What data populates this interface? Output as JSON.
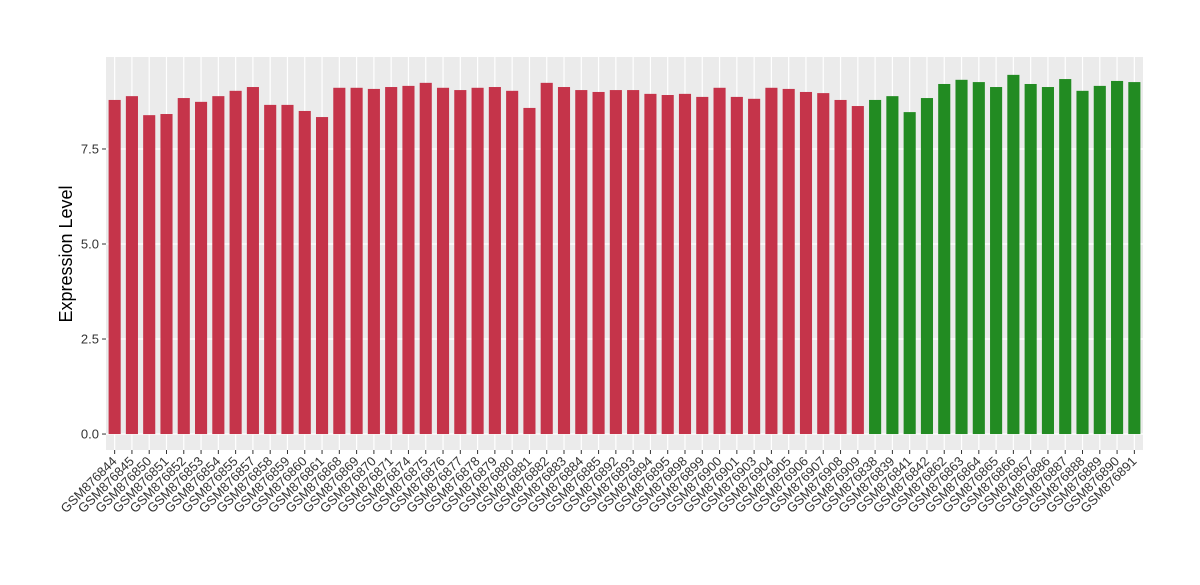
{
  "chart_data": {
    "type": "bar",
    "y_label": "Expression Level",
    "categories": [
      "GSM876844",
      "GSM876845",
      "GSM876850",
      "GSM876851",
      "GSM876852",
      "GSM876853",
      "GSM876854",
      "GSM876855",
      "GSM876857",
      "GSM876858",
      "GSM876859",
      "GSM876860",
      "GSM876861",
      "GSM876868",
      "GSM876869",
      "GSM876870",
      "GSM876871",
      "GSM876874",
      "GSM876875",
      "GSM876876",
      "GSM876877",
      "GSM876878",
      "GSM876879",
      "GSM876880",
      "GSM876881",
      "GSM876882",
      "GSM876883",
      "GSM876884",
      "GSM876885",
      "GSM876892",
      "GSM876893",
      "GSM876894",
      "GSM876895",
      "GSM876898",
      "GSM876899",
      "GSM876900",
      "GSM876901",
      "GSM876903",
      "GSM876904",
      "GSM876905",
      "GSM876906",
      "GSM876907",
      "GSM876908",
      "GSM876909",
      "GSM876838",
      "GSM876839",
      "GSM876841",
      "GSM876842",
      "GSM876862",
      "GSM876863",
      "GSM876864",
      "GSM876865",
      "GSM876866",
      "GSM876867",
      "GSM876886",
      "GSM876887",
      "GSM876888",
      "GSM876889",
      "GSM876890",
      "GSM876891"
    ],
    "values": [
      8.79,
      8.89,
      8.39,
      8.42,
      8.84,
      8.74,
      8.89,
      9.03,
      9.13,
      8.66,
      8.66,
      8.5,
      8.34,
      9.11,
      9.11,
      9.08,
      9.13,
      9.16,
      9.24,
      9.11,
      9.05,
      9.11,
      9.13,
      9.03,
      8.58,
      9.24,
      9.13,
      9.05,
      9.0,
      9.05,
      9.05,
      8.95,
      8.92,
      8.95,
      8.87,
      9.11,
      8.87,
      8.82,
      9.11,
      9.08,
      9.0,
      8.97,
      8.79,
      8.63,
      8.79,
      8.89,
      8.47,
      8.84,
      9.21,
      9.32,
      9.26,
      9.13,
      9.45,
      9.21,
      9.13,
      9.34,
      9.03,
      9.16,
      9.29,
      9.26
    ],
    "bar_colors": [
      "#c5344a",
      "#c5344a",
      "#c5344a",
      "#c5344a",
      "#c5344a",
      "#c5344a",
      "#c5344a",
      "#c5344a",
      "#c5344a",
      "#c5344a",
      "#c5344a",
      "#c5344a",
      "#c5344a",
      "#c5344a",
      "#c5344a",
      "#c5344a",
      "#c5344a",
      "#c5344a",
      "#c5344a",
      "#c5344a",
      "#c5344a",
      "#c5344a",
      "#c5344a",
      "#c5344a",
      "#c5344a",
      "#c5344a",
      "#c5344a",
      "#c5344a",
      "#c5344a",
      "#c5344a",
      "#c5344a",
      "#c5344a",
      "#c5344a",
      "#c5344a",
      "#c5344a",
      "#c5344a",
      "#c5344a",
      "#c5344a",
      "#c5344a",
      "#c5344a",
      "#c5344a",
      "#c5344a",
      "#c5344a",
      "#c5344a",
      "#228b22",
      "#228b22",
      "#228b22",
      "#228b22",
      "#228b22",
      "#228b22",
      "#228b22",
      "#228b22",
      "#228b22",
      "#228b22",
      "#228b22",
      "#228b22",
      "#228b22",
      "#228b22",
      "#228b22",
      "#228b22"
    ],
    "ylim": [
      -0.42,
      9.92
    ],
    "yticks": [
      {
        "value": 0,
        "label": "0.0"
      },
      {
        "value": 2.5,
        "label": "2.5"
      },
      {
        "value": 5,
        "label": "5.0"
      },
      {
        "value": 7.5,
        "label": "7.5"
      }
    ],
    "grid": true
  }
}
